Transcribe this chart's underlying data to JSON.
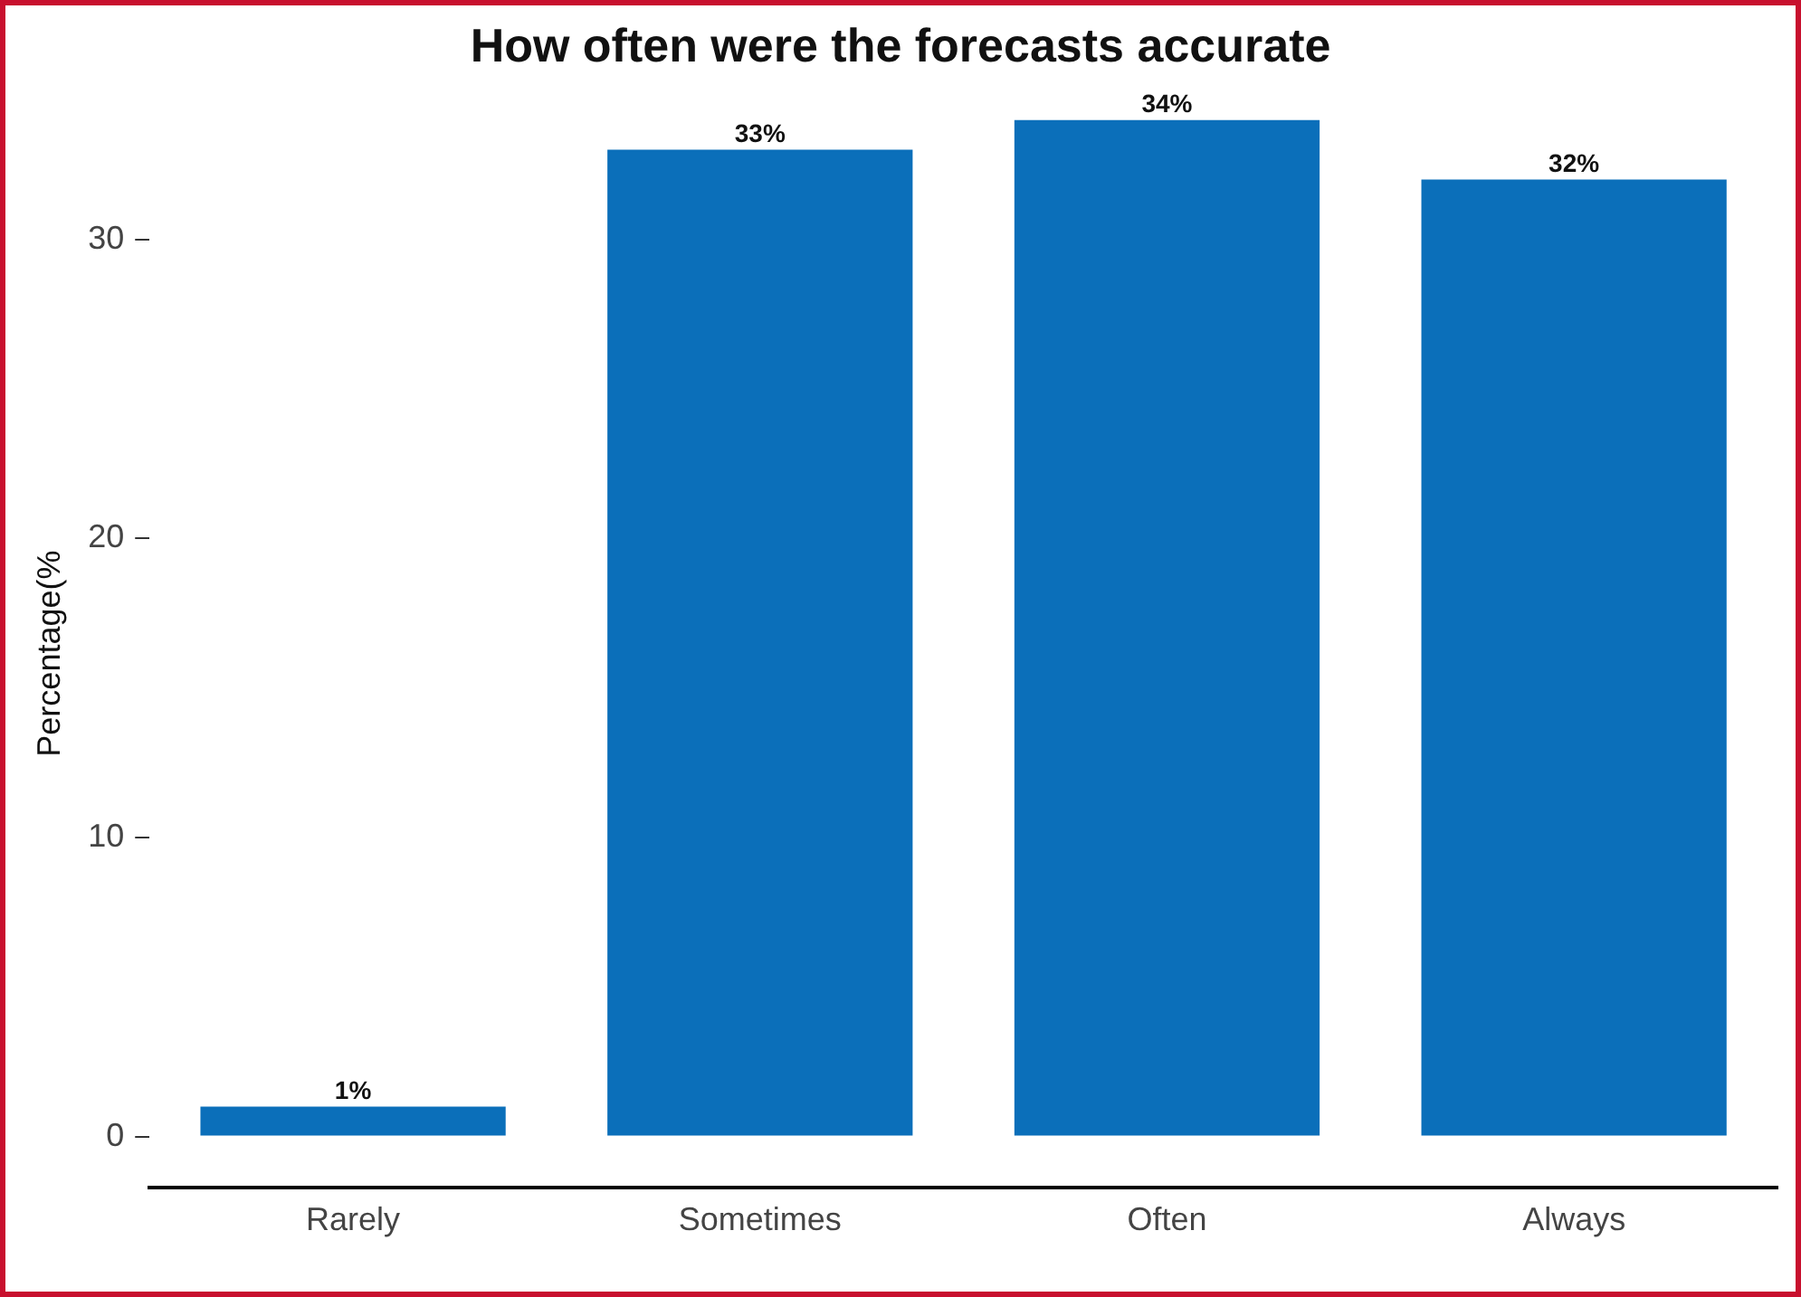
{
  "chart_data": {
    "type": "bar",
    "title": "How often were the forecasts accurate",
    "ylabel": "Percentage(%",
    "categories": [
      "Rarely",
      "Sometimes",
      "Often",
      "Always"
    ],
    "values": [
      1,
      33,
      34,
      32
    ],
    "value_labels": [
      "1%",
      "33%",
      "34%",
      "32%"
    ],
    "color": "#0b6fba",
    "ylim": [
      -1.7,
      34
    ],
    "yticks": [
      0,
      10,
      20,
      30
    ],
    "grid": false,
    "legend": false
  }
}
